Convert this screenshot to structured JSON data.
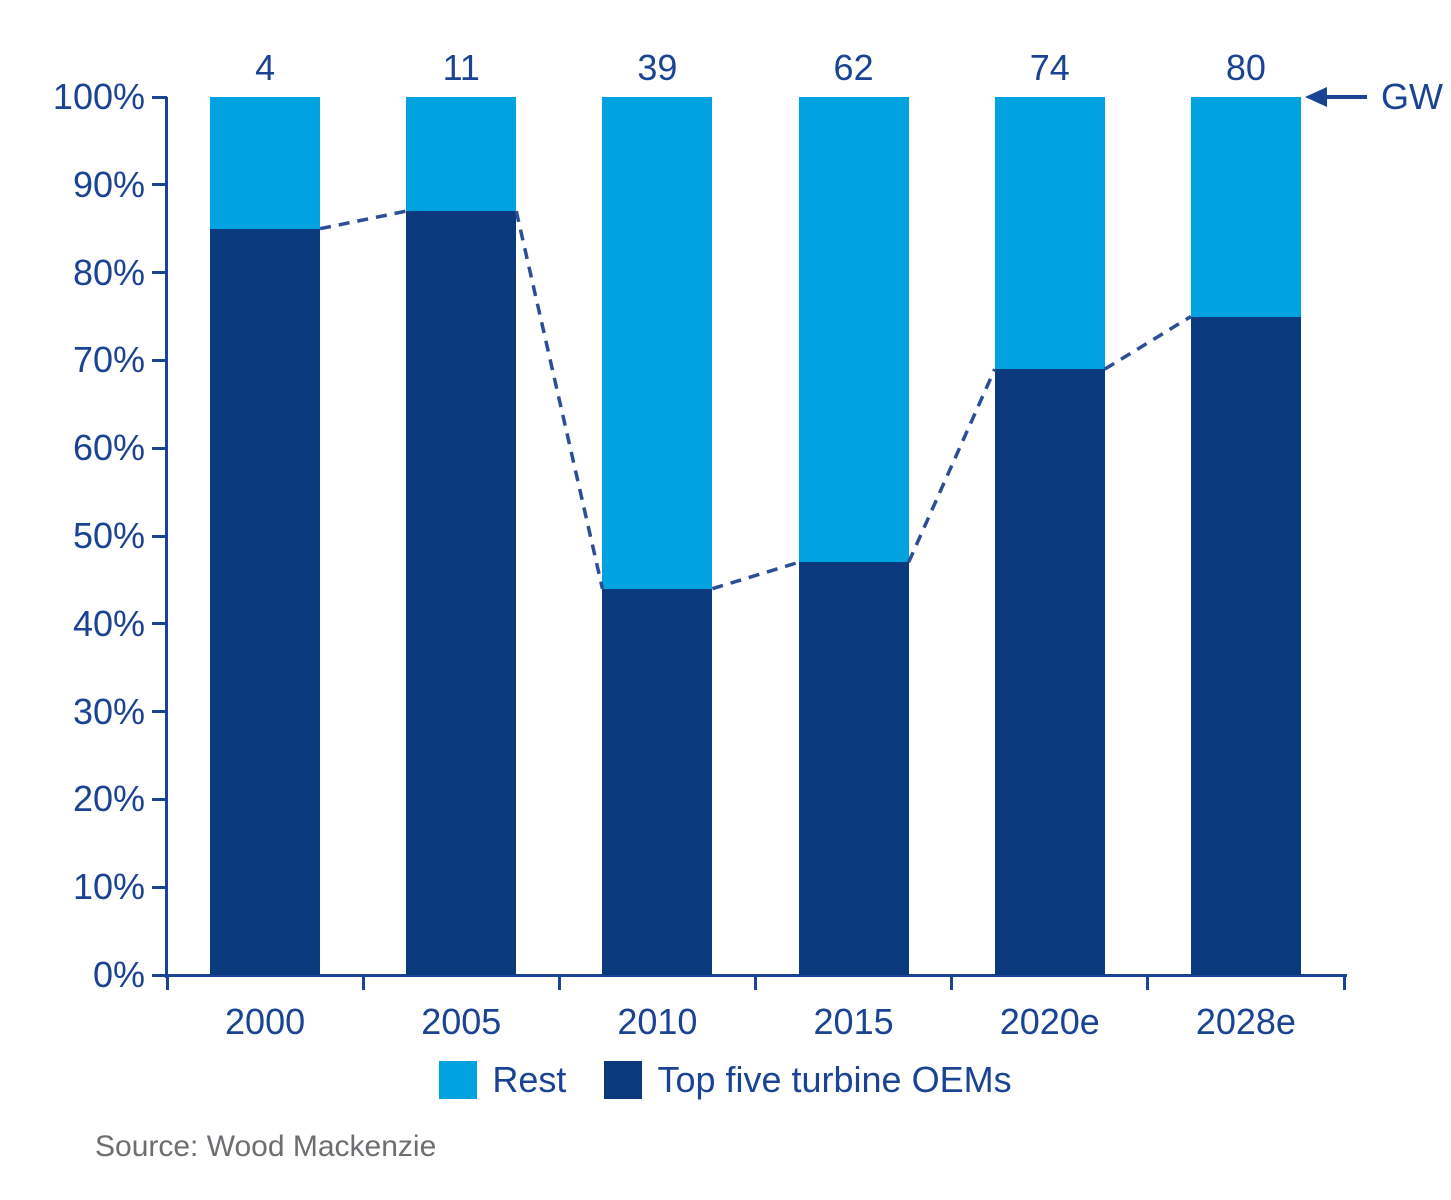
{
  "chart_data": {
    "type": "bar",
    "stacked": true,
    "orientation": "vertical",
    "categories": [
      "2000",
      "2005",
      "2010",
      "2015",
      "2020e",
      "2028e"
    ],
    "series": [
      {
        "name": "Rest",
        "color": "#00A3E0",
        "values": [
          15,
          13,
          56,
          53,
          31,
          25
        ]
      },
      {
        "name": "Top five turbine OEMs",
        "color": "#0A3A7D",
        "values": [
          85,
          87,
          44,
          47,
          69,
          75
        ]
      }
    ],
    "bar_total_labels": {
      "values": [
        "4",
        "11",
        "39",
        "62",
        "74",
        "80"
      ],
      "unit_label": "GW"
    },
    "trend_line": {
      "follows_series": "Top five turbine OEMs",
      "style": "dashed",
      "color": "#2B4E95",
      "points_pct": [
        85,
        87,
        44,
        47,
        69,
        75
      ]
    },
    "yaxis": {
      "min": 0,
      "max": 100,
      "ticks": [
        "0%",
        "10%",
        "20%",
        "30%",
        "40%",
        "50%",
        "60%",
        "70%",
        "80%",
        "90%",
        "100%"
      ]
    },
    "legend": {
      "position": "bottom",
      "entries": [
        "Rest",
        "Top five turbine OEMs"
      ]
    },
    "source": "Source: Wood Mackenzie",
    "colors": {
      "text": "#1B4394",
      "axis": "#1B4394",
      "dashed_line": "#2B4E95",
      "source_text": "#6D6E71",
      "background": "#FFFFFF"
    }
  }
}
